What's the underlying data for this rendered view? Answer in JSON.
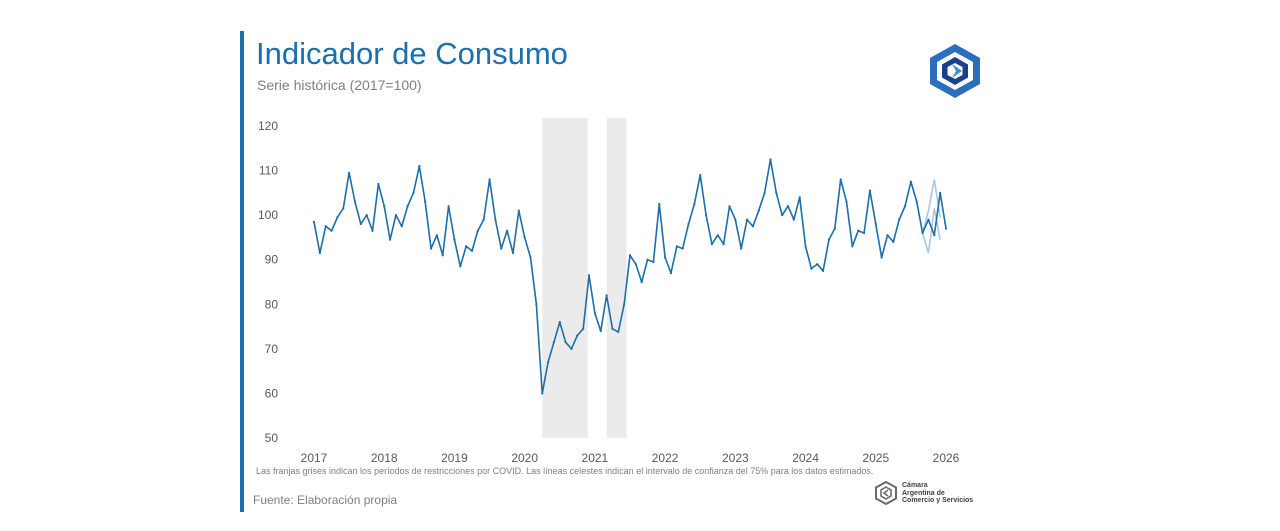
{
  "header": {
    "title": "Indicador de Consumo",
    "subtitle": "Serie histórica (2017=100)"
  },
  "footer": {
    "note": "Las franjas grises indican los períodos de restricciones por COVID. Las líneas celestes indican el intervalo de confianza del 75% para los datos estimados.",
    "source": "Fuente: Elaboración propia",
    "org_line1": "Cámara",
    "org_line2": "Argentina de",
    "org_line3": "Comercio y Servicios"
  },
  "colors": {
    "accent": "#1a6fb0",
    "line": "#1b6fa8",
    "confidence": "#a9c8e6",
    "shade": "#ebebeb"
  },
  "chart_data": {
    "type": "line",
    "title": "Indicador de Consumo",
    "subtitle": "Serie histórica (2017=100)",
    "xlabel": "",
    "ylabel": "",
    "ylim": [
      50,
      120
    ],
    "yticks": [
      120,
      110,
      100,
      90,
      80,
      70,
      60,
      50
    ],
    "xticks": [
      "2017",
      "2018",
      "2019",
      "2020",
      "2021",
      "2022",
      "2023",
      "2024",
      "2025",
      "2026"
    ],
    "x_start": 2017.0,
    "x_step_months": 1,
    "grid": false,
    "shaded_periods": [
      {
        "label": "COVID",
        "from": 2020.25,
        "to": 2020.9
      },
      {
        "label": "COVID",
        "from": 2021.17,
        "to": 2021.45
      }
    ],
    "series": [
      {
        "name": "Indicador de Consumo",
        "values": [
          98.5,
          91.5,
          97.5,
          96.5,
          99.5,
          101.5,
          109.5,
          103.0,
          98.0,
          100.0,
          96.5,
          107.0,
          102.0,
          94.5,
          100.0,
          97.5,
          102.0,
          105.0,
          111.0,
          103.0,
          92.5,
          95.5,
          91.0,
          102.0,
          94.5,
          88.5,
          93.0,
          92.0,
          96.5,
          99.0,
          108.0,
          99.0,
          92.5,
          96.5,
          91.5,
          101.0,
          95.0,
          90.5,
          80.0,
          60.0,
          67.0,
          71.5,
          76.0,
          71.5,
          70.0,
          73.0,
          74.5,
          86.5,
          78.0,
          74.0,
          82.0,
          74.5,
          73.8,
          80.0,
          91.0,
          89.0,
          85.0,
          90.0,
          89.5,
          102.5,
          90.5,
          87.0,
          93.0,
          92.5,
          98.0,
          102.5,
          109.0,
          100.0,
          93.5,
          95.5,
          93.5,
          102.0,
          99.0,
          92.5,
          99.0,
          97.5,
          101.0,
          105.0,
          112.5,
          105.0,
          100.0,
          102.0,
          99.0,
          104.0,
          93.0,
          88.0,
          89.0,
          87.5,
          94.5,
          97.0,
          108.0,
          103.0,
          93.0,
          96.5,
          96.0,
          105.5,
          98.0,
          90.5,
          95.5,
          94.0,
          99.0,
          102.0,
          107.5,
          103.0,
          96.0,
          99.0,
          95.5,
          105.0,
          97.0
        ]
      }
    ],
    "confidence_interval": {
      "start_index": 104,
      "lower": [
        96.0,
        91.5,
        101.5,
        94.5
      ],
      "upper": [
        96.0,
        101.0,
        108.0,
        99.5
      ]
    }
  }
}
